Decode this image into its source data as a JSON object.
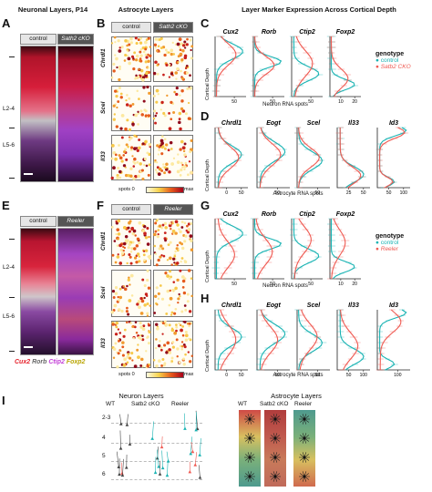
{
  "titles": {
    "neuronal": "Neuronal Layers, P14",
    "astrocyte": "Astrocyte Layers",
    "marker": "Layer Marker Expression Across Cortical Depth",
    "neuron_layers": "Neuron Layers",
    "astro_layers": "Astrocyte Layers"
  },
  "panel_letters": [
    "A",
    "B",
    "C",
    "D",
    "E",
    "F",
    "G",
    "H",
    "I"
  ],
  "headers": {
    "control": "control",
    "sath2": "Sath2 cKO",
    "reeler": "Reeler"
  },
  "layers": {
    "l24": "L2-4",
    "l56": "L5-6"
  },
  "astro_rows": [
    "Chrdl1",
    "Scel",
    "Il33"
  ],
  "colorbar": {
    "left": "spots  0",
    "right": "max"
  },
  "axis": {
    "cortical_depth": "Cortical Depth",
    "neuron_x": "Neuron RNA spots",
    "astro_x": "Astrocyte RNA spots"
  },
  "neuron_genes": [
    "Cux2",
    "Rorb",
    "Ctip2",
    "Foxp2"
  ],
  "astro_genes": [
    "Chrdl1",
    "Eogt",
    "Scel",
    "Il33",
    "Id3"
  ],
  "neuron_ticks": [
    [
      "50"
    ],
    [
      "50"
    ],
    [
      "50"
    ],
    [
      "10",
      "20"
    ]
  ],
  "astro_ticks": [
    [
      "0",
      "50"
    ],
    [
      "50"
    ],
    [
      "50"
    ],
    [
      "25",
      "50"
    ],
    [
      "50",
      "100"
    ]
  ],
  "astro_ticks_h": [
    [
      "0",
      "50"
    ],
    [
      "50"
    ],
    [
      "50"
    ],
    [
      "50",
      "100"
    ],
    [
      "100"
    ]
  ],
  "legend_top": {
    "title": "genotype",
    "a": "control",
    "b": "Satb2 CKO"
  },
  "legend_bottom": {
    "title": "genotype",
    "a": "control",
    "b": "Reeler"
  },
  "stain_legend": [
    "Cux2",
    "Rorb",
    "Ctip2",
    "Foxp2"
  ],
  "schematic": {
    "neuron_cols": [
      "WT",
      "Satb2 cKO",
      "Reeler"
    ],
    "astro_cols": [
      "WT",
      "Satb2 cKO",
      "Reeler"
    ],
    "rows": [
      "2-3",
      "4",
      "5",
      "6"
    ]
  },
  "colors": {
    "control": "#19b3b3",
    "mutant": "#ef5a52",
    "cux2": "#e6202a",
    "rorb": "#f2f2f2",
    "ctip2": "#c13ad6",
    "foxp2": "#e8d320"
  }
}
